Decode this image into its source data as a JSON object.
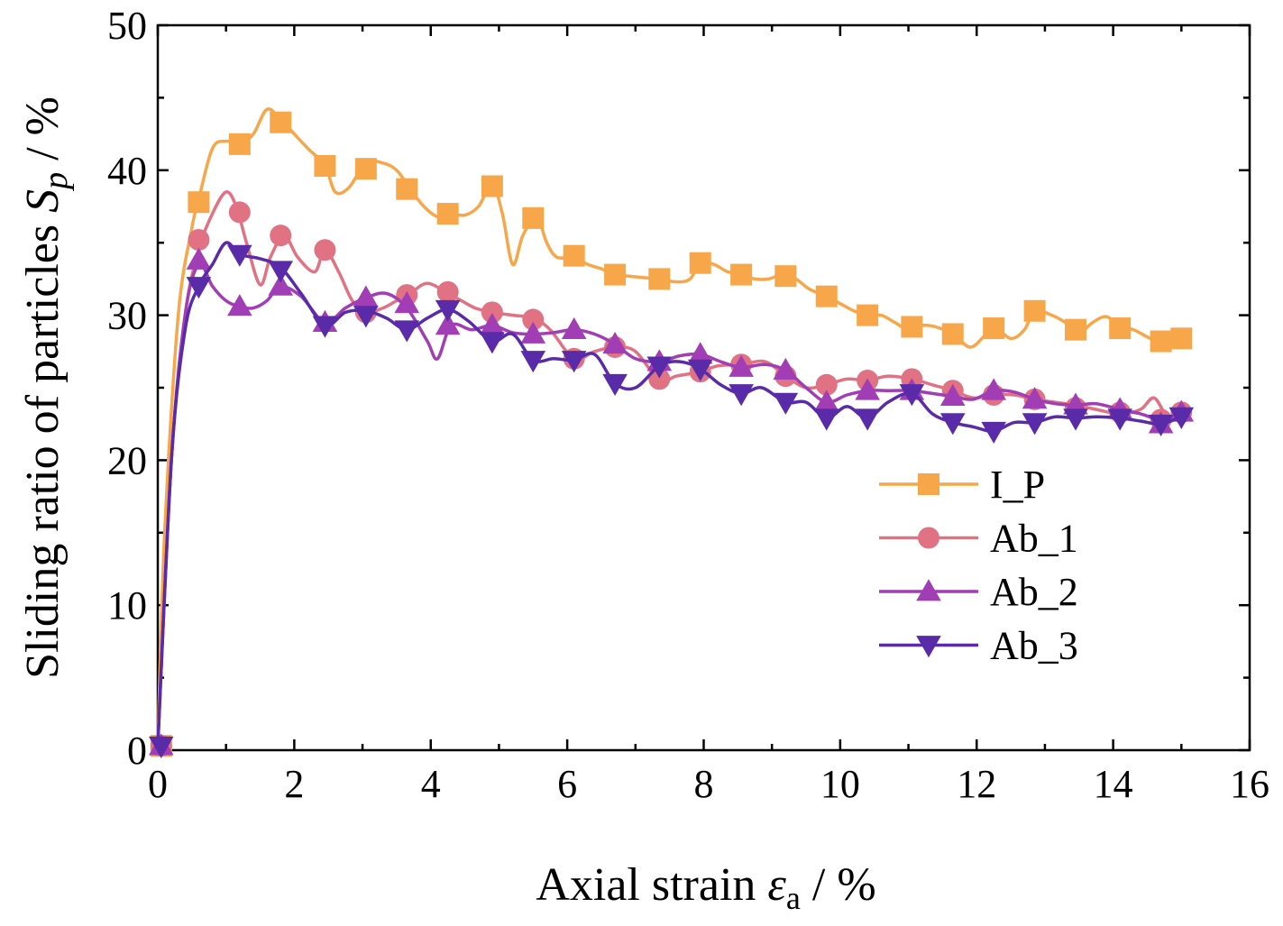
{
  "chart_data": {
    "type": "line",
    "title": "",
    "xlabel": {
      "main": "Axial strain ",
      "symbol": "ε",
      "sub": "a",
      "unit": " / %"
    },
    "ylabel": {
      "main": "Sliding ratio of particles ",
      "symbol": "S",
      "sub": "p",
      "unit": " / %"
    },
    "xlim": [
      0,
      16
    ],
    "ylim": [
      0,
      50
    ],
    "x_ticks": [
      "0",
      "2",
      "4",
      "6",
      "8",
      "10",
      "12",
      "14",
      "16"
    ],
    "y_ticks": [
      "0",
      "10",
      "20",
      "30",
      "40",
      "50"
    ],
    "grid": false,
    "legend_position": "right",
    "series": [
      {
        "name": "I_P",
        "color": "#F7A64A",
        "marker": "square",
        "line_x": [
          0.0,
          0.1,
          0.3,
          0.5,
          0.6,
          0.8,
          1.0,
          1.2,
          1.4,
          1.6,
          1.8,
          2.0,
          2.2,
          2.45,
          2.6,
          2.8,
          3.05,
          3.3,
          3.5,
          3.7,
          3.9,
          4.1,
          4.3,
          4.5,
          4.7,
          4.9,
          5.05,
          5.2,
          5.35,
          5.55,
          5.7,
          5.85,
          6.1,
          6.3,
          6.5,
          6.7,
          6.9,
          7.1,
          7.35,
          7.6,
          7.8,
          7.95,
          8.15,
          8.35,
          8.55,
          8.75,
          8.95,
          9.15,
          9.35,
          9.55,
          9.8,
          10.0,
          10.2,
          10.4,
          10.6,
          10.8,
          11.0,
          11.2,
          11.4,
          11.65,
          11.9,
          12.1,
          12.25,
          12.5,
          12.7,
          12.85,
          13.1,
          13.3,
          13.5,
          13.7,
          13.9,
          14.1,
          14.3,
          14.5,
          14.7,
          14.85,
          15.0
        ],
        "line_y": [
          0.3,
          15,
          30,
          36,
          38,
          41.5,
          42,
          41.8,
          42.5,
          44.2,
          43.5,
          42.5,
          41.5,
          40.3,
          38.5,
          38.8,
          40.5,
          40.5,
          40,
          38.7,
          37.5,
          36.8,
          37,
          36.9,
          37.5,
          39,
          37,
          33.5,
          35.5,
          36.8,
          35,
          34,
          34,
          33.5,
          33.2,
          32.8,
          32.7,
          32.6,
          32.5,
          32.3,
          32.5,
          33.6,
          33.5,
          33,
          32.8,
          32.5,
          32.5,
          32.8,
          32.5,
          31.8,
          31.3,
          30.8,
          30.3,
          30,
          30,
          29.5,
          29,
          29.3,
          29.2,
          28.7,
          27.8,
          28.5,
          29.2,
          28.4,
          29,
          30.3,
          30,
          29.5,
          28.8,
          29.5,
          29.9,
          29.2,
          29.0,
          28.5,
          28.1,
          28.2,
          28.4
        ],
        "marker_x": [
          0.05,
          0.6,
          1.2,
          1.8,
          2.45,
          3.05,
          3.65,
          4.25,
          4.9,
          5.5,
          6.1,
          6.7,
          7.35,
          7.95,
          8.55,
          9.2,
          9.8,
          10.4,
          11.05,
          11.65,
          12.25,
          12.85,
          13.45,
          14.1,
          14.7,
          15.0
        ],
        "marker_y": [
          0.3,
          37.8,
          41.8,
          43.3,
          40.3,
          40.1,
          38.7,
          37.0,
          38.9,
          36.7,
          34.1,
          32.8,
          32.5,
          33.6,
          32.8,
          32.7,
          31.3,
          30.0,
          29.2,
          28.7,
          29.1,
          30.3,
          29.0,
          29.1,
          28.2,
          28.4
        ]
      },
      {
        "name": "Ab_1",
        "color": "#E07283",
        "marker": "circle",
        "line_x": [
          0.0,
          0.2,
          0.4,
          0.6,
          0.8,
          1.0,
          1.15,
          1.3,
          1.5,
          1.65,
          1.85,
          2.05,
          2.3,
          2.45,
          2.65,
          2.85,
          3.05,
          3.3,
          3.5,
          3.7,
          3.95,
          4.25,
          4.45,
          4.65,
          4.9,
          5.2,
          5.5,
          5.75,
          6.1,
          6.4,
          6.7,
          7.0,
          7.35,
          7.6,
          7.95,
          8.2,
          8.55,
          8.9,
          9.2,
          9.5,
          9.8,
          10.1,
          10.4,
          10.7,
          11.05,
          11.35,
          11.65,
          11.95,
          12.25,
          12.55,
          12.85,
          13.15,
          13.45,
          13.75,
          14.1,
          14.4,
          14.6,
          14.8,
          15.0
        ],
        "line_y": [
          0.3,
          20,
          30,
          34.5,
          37,
          38.5,
          37.5,
          35,
          32.1,
          34,
          35.5,
          34,
          33,
          34.5,
          33,
          31,
          30.2,
          30.5,
          31,
          31.5,
          32.2,
          31.5,
          31,
          30.5,
          30.2,
          30,
          29.8,
          29,
          27,
          27.5,
          27.8,
          27.5,
          25.5,
          25.8,
          26.1,
          26.5,
          26.6,
          26.8,
          25.8,
          25.0,
          25.2,
          25.6,
          25.5,
          25.8,
          25.6,
          25.2,
          24.8,
          24.3,
          24.5,
          24.5,
          24.2,
          24.0,
          23.8,
          23.5,
          23.2,
          23.5,
          24.3,
          23.0,
          23.3
        ],
        "marker_x": [
          0.05,
          0.6,
          1.2,
          1.8,
          2.45,
          3.05,
          3.65,
          4.25,
          4.9,
          5.5,
          6.1,
          6.7,
          7.35,
          7.95,
          8.55,
          9.2,
          9.8,
          10.4,
          11.05,
          11.65,
          12.25,
          12.85,
          13.45,
          14.1,
          14.7,
          15.0
        ],
        "marker_y": [
          0.3,
          35.2,
          37.1,
          35.5,
          34.5,
          30.2,
          31.4,
          31.6,
          30.2,
          29.7,
          27.0,
          27.8,
          25.6,
          26.1,
          26.6,
          25.8,
          25.2,
          25.5,
          25.6,
          24.8,
          24.5,
          24.2,
          23.6,
          23.3,
          22.8,
          23.3
        ]
      },
      {
        "name": "Ab_2",
        "color": "#A13DB5",
        "marker": "triangle-up",
        "line_x": [
          0.0,
          0.2,
          0.4,
          0.6,
          0.8,
          1.0,
          1.2,
          1.4,
          1.6,
          1.8,
          2.1,
          2.45,
          2.75,
          3.05,
          3.35,
          3.65,
          3.95,
          4.1,
          4.3,
          4.6,
          4.9,
          5.2,
          5.5,
          5.8,
          6.1,
          6.4,
          6.7,
          7.0,
          7.35,
          7.65,
          7.95,
          8.25,
          8.55,
          8.9,
          9.2,
          9.5,
          9.8,
          10.1,
          10.4,
          10.7,
          11.05,
          11.35,
          11.65,
          11.95,
          12.25,
          12.55,
          12.85,
          13.15,
          13.45,
          13.75,
          14.1,
          14.4,
          14.7,
          15.0
        ],
        "line_y": [
          0.3,
          20,
          30,
          33.5,
          32,
          31,
          30.6,
          30.5,
          31.0,
          32.0,
          31.3,
          29.5,
          30.5,
          31.2,
          31.5,
          30.5,
          28.2,
          27.0,
          29.3,
          29.0,
          29.3,
          28.8,
          28.7,
          28.8,
          29.0,
          28.7,
          28.0,
          27.0,
          26.8,
          27.2,
          27.3,
          26.8,
          26.4,
          26.6,
          26.2,
          25.0,
          24.0,
          24.5,
          24.8,
          24.8,
          24.8,
          24.6,
          24.4,
          24.2,
          24.8,
          24.7,
          24.2,
          23.9,
          23.8,
          23.9,
          23.5,
          23.2,
          22.8,
          23.3
        ],
        "marker_x": [
          0.05,
          0.6,
          1.2,
          1.8,
          2.45,
          3.05,
          3.65,
          4.25,
          4.9,
          5.5,
          6.1,
          6.7,
          7.35,
          7.95,
          8.55,
          9.2,
          9.8,
          10.4,
          11.05,
          11.65,
          12.25,
          12.85,
          13.45,
          14.1,
          14.7,
          15.0
        ],
        "marker_y": [
          0.3,
          33.8,
          30.6,
          32.0,
          29.5,
          31.2,
          30.8,
          29.3,
          29.3,
          28.7,
          29.0,
          28.0,
          26.8,
          27.3,
          26.4,
          26.2,
          24.0,
          24.8,
          24.8,
          24.4,
          24.8,
          24.2,
          23.8,
          23.5,
          22.5,
          23.3
        ]
      },
      {
        "name": "Ab_3",
        "color": "#5A2BA8",
        "marker": "triangle-down",
        "line_x": [
          0.0,
          0.2,
          0.4,
          0.6,
          0.8,
          1.0,
          1.2,
          1.5,
          1.8,
          2.1,
          2.45,
          2.75,
          3.05,
          3.35,
          3.65,
          3.95,
          4.25,
          4.55,
          4.9,
          5.2,
          5.5,
          5.8,
          6.1,
          6.4,
          6.7,
          7.0,
          7.35,
          7.65,
          7.95,
          8.25,
          8.55,
          8.85,
          9.2,
          9.5,
          9.8,
          10.1,
          10.4,
          10.7,
          11.05,
          11.35,
          11.65,
          11.95,
          12.25,
          12.55,
          12.85,
          13.15,
          13.45,
          13.75,
          14.1,
          14.4,
          14.7,
          15.0
        ],
        "line_y": [
          0.3,
          20,
          29,
          32,
          33.5,
          35.0,
          34.2,
          33.9,
          33.3,
          31.5,
          29.3,
          30.2,
          30.3,
          29.8,
          29.0,
          29.8,
          30.4,
          29.6,
          28.2,
          28.7,
          26.9,
          27.0,
          26.9,
          27.3,
          25.3,
          25.0,
          26.5,
          26.8,
          26.3,
          25.2,
          24.6,
          25.0,
          24.0,
          24.0,
          22.9,
          23.7,
          22.9,
          24.0,
          24.6,
          23.2,
          22.6,
          22.3,
          22.0,
          22.6,
          22.6,
          23.0,
          22.9,
          23.0,
          22.9,
          22.7,
          22.5,
          23.0
        ],
        "marker_x": [
          0.05,
          0.6,
          1.2,
          1.8,
          2.45,
          3.05,
          3.65,
          4.25,
          4.9,
          5.5,
          6.1,
          6.7,
          7.35,
          7.95,
          8.55,
          9.2,
          9.8,
          10.4,
          11.05,
          11.65,
          12.25,
          12.85,
          13.45,
          14.1,
          14.7,
          15.0
        ],
        "marker_y": [
          0.3,
          32.0,
          34.2,
          33.1,
          29.3,
          30.0,
          29.0,
          30.4,
          28.2,
          26.9,
          26.9,
          25.3,
          26.5,
          26.3,
          24.6,
          24.0,
          22.9,
          22.9,
          24.6,
          22.6,
          22.0,
          22.6,
          22.9,
          22.9,
          22.5,
          23.0
        ]
      }
    ]
  }
}
